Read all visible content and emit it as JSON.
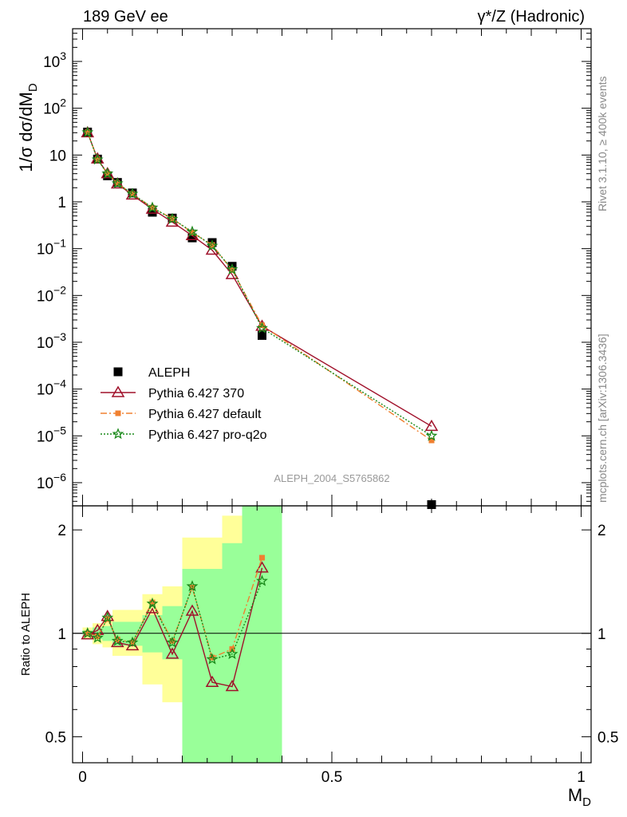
{
  "header": {
    "left_label": "189 GeV ee",
    "right_label": "γ*/Z (Hadronic)"
  },
  "side_labels": {
    "rivet": "Rivet 3.1.10, ≥ 400k events",
    "mcplots": "mcplots.cern.ch [arXiv:1306.3436]"
  },
  "watermark": "ALEPH_2004_S5765862",
  "chart_data": [
    {
      "type": "scatter",
      "panel": "main",
      "ylabel": "1/σ  dσ/dM_D",
      "yscale": "log",
      "ylim": [
        3.2e-07,
        5000
      ],
      "xlim": [
        -0.02,
        1.02
      ],
      "y_ticks": [
        {
          "value": 1000.0,
          "label": "10",
          "exp": "3"
        },
        {
          "value": 100.0,
          "label": "10",
          "exp": "2"
        },
        {
          "value": 10,
          "label": "10",
          "exp": ""
        },
        {
          "value": 1,
          "label": "1",
          "exp": ""
        },
        {
          "value": 0.1,
          "label": "10",
          "exp": "−1"
        },
        {
          "value": 0.01,
          "label": "10",
          "exp": "−2"
        },
        {
          "value": 0.001,
          "label": "10",
          "exp": "−3"
        },
        {
          "value": 0.0001,
          "label": "10",
          "exp": "−4"
        },
        {
          "value": 1e-05,
          "label": "10",
          "exp": "−5"
        },
        {
          "value": 1e-06,
          "label": "10",
          "exp": "−6"
        }
      ],
      "legend_position": "bottom-left",
      "series": [
        {
          "name": "ALEPH",
          "color": "#000000",
          "marker": "square",
          "x": [
            0.01,
            0.03,
            0.05,
            0.07,
            0.1,
            0.14,
            0.18,
            0.22,
            0.26,
            0.3,
            0.36,
            0.7
          ],
          "y": [
            31,
            8.2,
            3.6,
            2.6,
            1.55,
            0.6,
            0.45,
            0.17,
            0.135,
            0.042,
            0.0014,
            3.4e-07
          ]
        },
        {
          "name": "Pythia 6.427 370",
          "color": "#a0102a",
          "marker": "triangle",
          "line": "solid",
          "x": [
            0.01,
            0.03,
            0.05,
            0.07,
            0.1,
            0.14,
            0.18,
            0.22,
            0.26,
            0.3,
            0.36,
            0.7
          ],
          "y": [
            30,
            8.3,
            4,
            2.42,
            1.4,
            0.7,
            0.37,
            0.19,
            0.093,
            0.028,
            0.0022,
            1.6e-05
          ]
        },
        {
          "name": "Pythia 6.427 default",
          "color": "#f08030",
          "marker": "square-small",
          "line": "dashdot",
          "x": [
            0.01,
            0.03,
            0.05,
            0.07,
            0.1,
            0.14,
            0.18,
            0.22,
            0.26,
            0.3,
            0.36,
            0.7
          ],
          "y": [
            30.5,
            8,
            4,
            2.48,
            1.48,
            0.75,
            0.44,
            0.22,
            0.12,
            0.035,
            0.0023,
            8e-06
          ]
        },
        {
          "name": "Pythia 6.427 pro-q2o",
          "color": "#1a8a1a",
          "marker": "star",
          "line": "dotted",
          "x": [
            0.01,
            0.03,
            0.05,
            0.07,
            0.1,
            0.14,
            0.18,
            0.22,
            0.26,
            0.3,
            0.36,
            0.7
          ],
          "y": [
            30.5,
            8,
            4,
            2.48,
            1.48,
            0.75,
            0.43,
            0.23,
            0.115,
            0.036,
            0.002,
            1e-05
          ]
        }
      ]
    },
    {
      "type": "line",
      "panel": "ratio",
      "ylabel": "Ratio to ALEPH",
      "xlabel": "M_D",
      "yscale": "log",
      "ylim": [
        0.42,
        2.35
      ],
      "xlim": [
        -0.02,
        1.02
      ],
      "x_ticks": [
        {
          "value": 0,
          "label": "0"
        },
        {
          "value": 0.5,
          "label": "0.5"
        },
        {
          "value": 1,
          "label": "1"
        }
      ],
      "y_ticks": [
        {
          "value": 0.5,
          "label": "0.5"
        },
        {
          "value": 1,
          "label": "1"
        },
        {
          "value": 2,
          "label": "2"
        }
      ],
      "bands": [
        {
          "x0": 0.0,
          "x1": 0.02,
          "stat": [
            0.98,
            1.02
          ],
          "total": [
            0.96,
            1.04
          ]
        },
        {
          "x0": 0.02,
          "x1": 0.04,
          "stat": [
            0.96,
            1.04
          ],
          "total": [
            0.93,
            1.07
          ]
        },
        {
          "x0": 0.04,
          "x1": 0.06,
          "stat": [
            0.95,
            1.05
          ],
          "total": [
            0.91,
            1.1
          ]
        },
        {
          "x0": 0.06,
          "x1": 0.08,
          "stat": [
            0.92,
            1.08
          ],
          "total": [
            0.86,
            1.17
          ]
        },
        {
          "x0": 0.08,
          "x1": 0.12,
          "stat": [
            0.92,
            1.08
          ],
          "total": [
            0.86,
            1.17
          ]
        },
        {
          "x0": 0.12,
          "x1": 0.16,
          "stat": [
            0.88,
            1.13
          ],
          "total": [
            0.71,
            1.3
          ]
        },
        {
          "x0": 0.16,
          "x1": 0.2,
          "stat": [
            0.84,
            1.2
          ],
          "total": [
            0.63,
            1.37
          ]
        },
        {
          "x0": 0.2,
          "x1": 0.28,
          "stat": [
            0.35,
            1.54
          ],
          "total": [
            0.1,
            1.9
          ]
        },
        {
          "x0": 0.28,
          "x1": 0.32,
          "stat": [
            0.35,
            1.83
          ],
          "total": [
            0.1,
            2.2
          ]
        },
        {
          "x0": 0.32,
          "x1": 0.4,
          "stat": [
            0.1,
            3.0
          ],
          "total": [
            0.1,
            3.0
          ]
        }
      ],
      "series": [
        {
          "name": "Pythia 6.427 370",
          "color": "#a0102a",
          "marker": "triangle",
          "line": "solid",
          "x": [
            0.01,
            0.03,
            0.05,
            0.07,
            0.1,
            0.14,
            0.18,
            0.22,
            0.26,
            0.3,
            0.36
          ],
          "y": [
            0.99,
            1.02,
            1.12,
            0.94,
            0.92,
            1.18,
            0.87,
            1.16,
            0.72,
            0.7,
            1.55
          ]
        },
        {
          "name": "Pythia 6.427 default",
          "color": "#f08030",
          "marker": "square-small",
          "line": "dashdot",
          "x": [
            0.01,
            0.03,
            0.05,
            0.07,
            0.1,
            0.14,
            0.18,
            0.22,
            0.26,
            0.3,
            0.36
          ],
          "y": [
            1.0,
            0.98,
            1.1,
            0.96,
            0.94,
            1.23,
            0.95,
            1.36,
            0.85,
            0.9,
            1.66
          ]
        },
        {
          "name": "Pythia 6.427 pro-q2o",
          "color": "#1a8a1a",
          "marker": "star",
          "line": "dotted",
          "x": [
            0.01,
            0.03,
            0.05,
            0.07,
            0.1,
            0.14,
            0.18,
            0.22,
            0.26,
            0.3,
            0.36
          ],
          "y": [
            1.0,
            0.97,
            1.11,
            0.95,
            0.94,
            1.22,
            0.94,
            1.37,
            0.84,
            0.87,
            1.42
          ]
        }
      ]
    }
  ]
}
